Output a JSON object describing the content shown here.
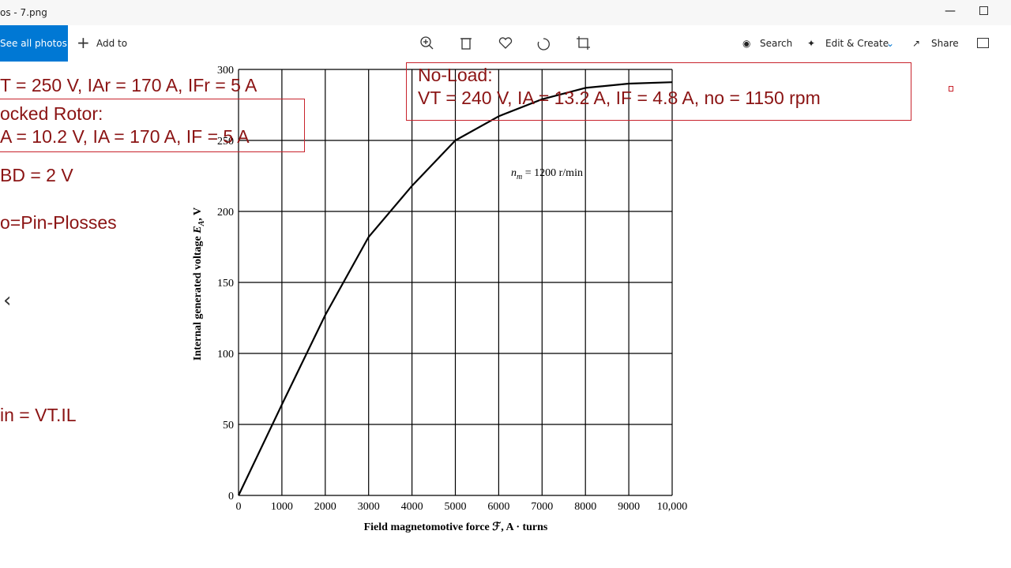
{
  "window": {
    "title": "os - 7.png"
  },
  "toolbar": {
    "see_all": "See all photos",
    "add_to": "Add to",
    "search": "Search",
    "edit_create": "Edit & Create",
    "share": "Share"
  },
  "notes": {
    "line1": "T = 250 V, IAr = 170 A, IFr = 5 A",
    "locked_title": "ocked Rotor:",
    "locked_values": "A = 10.2 V, IA = 170 A, IF = 5 A",
    "bd": "BD = 2 V",
    "po": "o=Pin-Plosses",
    "pin": "in = VT.IL",
    "no_load_title": "No-Load:",
    "no_load_values": "VT = 240 V, IA = 13.2 A, IF = 4.8 A, no = 1150 rpm"
  },
  "chart_data": {
    "type": "line",
    "x": [
      0,
      1000,
      2000,
      3000,
      4000,
      5000,
      6000,
      7000,
      8000,
      9000,
      10000
    ],
    "values": [
      0,
      64,
      127,
      182,
      218,
      250,
      267,
      279,
      287,
      290,
      291
    ],
    "color": "#000000",
    "xlim": [
      0,
      10000
    ],
    "ylim": [
      0,
      300
    ],
    "xticks": [
      0,
      1000,
      2000,
      3000,
      4000,
      5000,
      6000,
      7000,
      8000,
      9000,
      {
        "value": 10000,
        "label": "10,000"
      }
    ],
    "yticks": [
      0,
      50,
      100,
      150,
      200,
      250,
      300
    ],
    "grid": true,
    "xlabel": "Field magnetomotive force ℱ, A · turns",
    "ylabel": {
      "text": "Internal generated voltage ",
      "symbol": "E",
      "subscript": "A",
      "suffix": ", V"
    },
    "annotation": {
      "symbol": "n",
      "subscript": "m",
      "text": " = 1200 r/min"
    }
  }
}
